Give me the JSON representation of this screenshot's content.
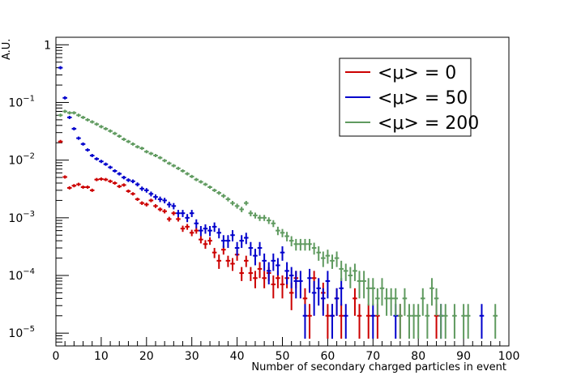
{
  "chart_data": {
    "type": "scatter",
    "xlabel": "Number of secondary charged particles in event",
    "ylabel": "A.U.",
    "xlim": [
      0,
      100
    ],
    "ylim": [
      6e-06,
      1.35
    ],
    "yscale": "log",
    "grid": false,
    "legend_position": "top-right",
    "x_ticks": [
      "0",
      "10",
      "20",
      "30",
      "40",
      "50",
      "60",
      "70",
      "80",
      "90",
      "100"
    ],
    "y_ticks": [
      {
        "value": 1,
        "base": "1",
        "exp": ""
      },
      {
        "value": 0.1,
        "base": "10",
        "exp": "−1"
      },
      {
        "value": 0.01,
        "base": "10",
        "exp": "−2"
      },
      {
        "value": 0.001,
        "base": "10",
        "exp": "−3"
      },
      {
        "value": 0.0001,
        "base": "10",
        "exp": "−4"
      },
      {
        "value": 1e-05,
        "base": "10",
        "exp": "−5"
      }
    ],
    "series": [
      {
        "name": "<μ> = 0",
        "color": "#cc0000",
        "points": [
          [
            1,
            0.021,
            0.0005
          ],
          [
            2,
            0.0051,
            0.00022
          ],
          [
            3,
            0.0033,
            0.00018
          ],
          [
            4,
            0.0036,
            0.00018
          ],
          [
            5,
            0.0038,
            0.00019
          ],
          [
            6,
            0.0034,
            0.00018
          ],
          [
            7,
            0.0034,
            0.00018
          ],
          [
            8,
            0.003,
            0.00017
          ],
          [
            9,
            0.0046,
            0.0002
          ],
          [
            10,
            0.0047,
            0.0002
          ],
          [
            11,
            0.0046,
            0.0002
          ],
          [
            12,
            0.0043,
            0.0002
          ],
          [
            13,
            0.004,
            0.00019
          ],
          [
            14,
            0.0035,
            0.00018
          ],
          [
            15,
            0.0037,
            0.00018
          ],
          [
            16,
            0.0029,
            0.00016
          ],
          [
            17,
            0.0026,
            0.00015
          ],
          [
            18,
            0.0021,
            0.00014
          ],
          [
            19,
            0.0018,
            0.00013
          ],
          [
            20,
            0.0017,
            0.00013
          ],
          [
            21,
            0.002,
            0.00014
          ],
          [
            22,
            0.0016,
            0.00012
          ],
          [
            23,
            0.0014,
            0.00011
          ],
          [
            24,
            0.0013,
            0.00011
          ],
          [
            25,
            0.00095,
            9e-05
          ],
          [
            26,
            0.0012,
            0.0001
          ],
          [
            27,
            0.00095,
            9e-05
          ],
          [
            28,
            0.00065,
            8e-05
          ],
          [
            29,
            0.0007,
            8e-05
          ],
          [
            30,
            0.00055,
            7e-05
          ],
          [
            31,
            0.0006,
            7e-05
          ],
          [
            32,
            0.00042,
            6e-05
          ],
          [
            33,
            0.00035,
            6e-05
          ],
          [
            34,
            0.0004,
            6e-05
          ],
          [
            35,
            0.00025,
            5e-05
          ],
          [
            36,
            0.00018,
            5e-05
          ],
          [
            37,
            0.00028,
            5e-05
          ],
          [
            38,
            0.00018,
            4e-05
          ],
          [
            39,
            0.00016,
            4e-05
          ],
          [
            40,
            0.00023,
            5e-05
          ],
          [
            41,
            0.00011,
            3e-05
          ],
          [
            42,
            0.00018,
            4e-05
          ],
          [
            43,
            0.00011,
            3e-05
          ],
          [
            44,
            9e-05,
            3e-05
          ],
          [
            45,
            0.00013,
            4e-05
          ],
          [
            46,
            9e-05,
            3e-05
          ],
          [
            47,
            0.00011,
            3e-05
          ],
          [
            48,
            7e-05,
            3e-05
          ],
          [
            49,
            9e-05,
            3e-05
          ],
          [
            50,
            7e-05,
            3e-05
          ],
          [
            51,
            9e-05,
            3e-05
          ],
          [
            52,
            5e-05,
            2.5e-05
          ],
          [
            53,
            9e-05,
            3e-05
          ],
          [
            55,
            4e-05,
            2e-05
          ],
          [
            56,
            2e-05,
            1.2e-05
          ],
          [
            57,
            9e-05,
            3e-05
          ],
          [
            59,
            5e-05,
            2.5e-05
          ],
          [
            60,
            2e-05,
            1.2e-05
          ],
          [
            61,
            2e-05,
            1.2e-05
          ],
          [
            62,
            4e-05,
            2e-05
          ],
          [
            63,
            2e-05,
            1.2e-05
          ],
          [
            66,
            4e-05,
            2e-05
          ],
          [
            67,
            2e-05,
            1.2e-05
          ],
          [
            69,
            2e-05,
            1.2e-05
          ],
          [
            71,
            2e-05,
            1.2e-05
          ],
          [
            76,
            2e-05,
            1.2e-05
          ],
          [
            84,
            2e-05,
            1.2e-05
          ]
        ]
      },
      {
        "name": "<μ> = 50",
        "color": "#0000cc",
        "points": [
          [
            1,
            0.4,
            0.003
          ],
          [
            2,
            0.12,
            0.0017
          ],
          [
            3,
            0.055,
            0.0012
          ],
          [
            4,
            0.035,
            0.0009
          ],
          [
            5,
            0.024,
            0.0008
          ],
          [
            6,
            0.019,
            0.0007
          ],
          [
            7,
            0.015,
            0.0006
          ],
          [
            8,
            0.012,
            0.0005
          ],
          [
            9,
            0.0105,
            0.0005
          ],
          [
            10,
            0.0095,
            0.0005
          ],
          [
            11,
            0.0085,
            0.00045
          ],
          [
            12,
            0.0075,
            0.0004
          ],
          [
            13,
            0.0065,
            0.0004
          ],
          [
            14,
            0.0058,
            0.00038
          ],
          [
            15,
            0.005,
            0.00035
          ],
          [
            16,
            0.0045,
            0.00033
          ],
          [
            17,
            0.0043,
            0.00032
          ],
          [
            18,
            0.0038,
            0.0003
          ],
          [
            19,
            0.0032,
            0.00028
          ],
          [
            20,
            0.003,
            0.00027
          ],
          [
            21,
            0.0026,
            0.00025
          ],
          [
            22,
            0.0023,
            0.00024
          ],
          [
            23,
            0.0021,
            0.00023
          ],
          [
            24,
            0.002,
            0.00022
          ],
          [
            25,
            0.0017,
            0.0002
          ],
          [
            26,
            0.0016,
            0.0002
          ],
          [
            27,
            0.0012,
            0.00017
          ],
          [
            28,
            0.0012,
            0.00017
          ],
          [
            29,
            0.001,
            0.00016
          ],
          [
            30,
            0.0012,
            0.00017
          ],
          [
            31,
            0.0008,
            0.00014
          ],
          [
            32,
            0.0006,
            0.00012
          ],
          [
            33,
            0.00065,
            0.00012
          ],
          [
            34,
            0.0006,
            0.00012
          ],
          [
            35,
            0.0007,
            0.00013
          ],
          [
            36,
            0.00055,
            0.00011
          ],
          [
            37,
            0.0004,
            0.0001
          ],
          [
            38,
            0.0004,
            0.0001
          ],
          [
            39,
            0.0005,
            0.00011
          ],
          [
            40,
            0.0003,
            8e-05
          ],
          [
            41,
            0.0004,
            0.0001
          ],
          [
            42,
            0.00045,
            0.0001
          ],
          [
            43,
            0.0003,
            8e-05
          ],
          [
            44,
            0.00022,
            7e-05
          ],
          [
            45,
            0.0003,
            8e-05
          ],
          [
            46,
            0.00018,
            6e-05
          ],
          [
            47,
            0.00012,
            5e-05
          ],
          [
            48,
            0.00018,
            6e-05
          ],
          [
            49,
            0.00015,
            5e-05
          ],
          [
            50,
            0.00025,
            7e-05
          ],
          [
            51,
            0.00012,
            5e-05
          ],
          [
            52,
            0.0001,
            4e-05
          ],
          [
            53,
            8e-05,
            4e-05
          ],
          [
            54,
            8e-05,
            4e-05
          ],
          [
            55,
            2e-05,
            1.2e-05
          ],
          [
            56,
            9e-05,
            4e-05
          ],
          [
            57,
            5e-05,
            3e-05
          ],
          [
            58,
            6e-05,
            3e-05
          ],
          [
            59,
            4e-05,
            2e-05
          ],
          [
            60,
            8e-05,
            4e-05
          ],
          [
            61,
            2e-05,
            1.2e-05
          ],
          [
            62,
            4e-05,
            2e-05
          ],
          [
            63,
            6e-05,
            3e-05
          ],
          [
            64,
            2e-05,
            1.2e-05
          ],
          [
            70,
            2e-05,
            1.2e-05
          ],
          [
            75,
            2e-05,
            1.2e-05
          ],
          [
            85,
            2e-05,
            1.2e-05
          ],
          [
            94,
            2e-05,
            1.2e-05
          ]
        ]
      },
      {
        "name": "<μ> = 200",
        "color": "#5f9a5f",
        "points": [
          [
            1,
            0.06,
            0.0008
          ],
          [
            2,
            0.07,
            0.0009
          ],
          [
            3,
            0.066,
            0.0008
          ],
          [
            4,
            0.066,
            0.0008
          ],
          [
            5,
            0.06,
            0.0008
          ],
          [
            6,
            0.055,
            0.0008
          ],
          [
            7,
            0.05,
            0.0007
          ],
          [
            8,
            0.046,
            0.0007
          ],
          [
            9,
            0.042,
            0.0007
          ],
          [
            10,
            0.038,
            0.0006
          ],
          [
            11,
            0.035,
            0.0006
          ],
          [
            12,
            0.032,
            0.0006
          ],
          [
            13,
            0.029,
            0.0005
          ],
          [
            14,
            0.026,
            0.0005
          ],
          [
            15,
            0.023,
            0.0005
          ],
          [
            16,
            0.021,
            0.0005
          ],
          [
            17,
            0.019,
            0.0004
          ],
          [
            18,
            0.017,
            0.0004
          ],
          [
            19,
            0.016,
            0.0004
          ],
          [
            20,
            0.014,
            0.0004
          ],
          [
            21,
            0.013,
            0.0004
          ],
          [
            22,
            0.012,
            0.0004
          ],
          [
            23,
            0.011,
            0.0003
          ],
          [
            24,
            0.0098,
            0.0003
          ],
          [
            25,
            0.0088,
            0.0003
          ],
          [
            26,
            0.008,
            0.0003
          ],
          [
            27,
            0.0072,
            0.0003
          ],
          [
            28,
            0.0065,
            0.0003
          ],
          [
            29,
            0.0058,
            0.0003
          ],
          [
            30,
            0.0052,
            0.00025
          ],
          [
            31,
            0.0046,
            0.00025
          ],
          [
            32,
            0.0042,
            0.00024
          ],
          [
            33,
            0.0038,
            0.00023
          ],
          [
            34,
            0.0034,
            0.00022
          ],
          [
            35,
            0.003,
            0.0002
          ],
          [
            36,
            0.0027,
            0.0002
          ],
          [
            37,
            0.0024,
            0.00019
          ],
          [
            38,
            0.0021,
            0.00018
          ],
          [
            39,
            0.0018,
            0.00016
          ],
          [
            40,
            0.0016,
            0.00016
          ],
          [
            41,
            0.0014,
            0.00015
          ],
          [
            42,
            0.0018,
            0.00016
          ],
          [
            43,
            0.0012,
            0.00014
          ],
          [
            44,
            0.0011,
            0.00013
          ],
          [
            45,
            0.001,
            0.00012
          ],
          [
            46,
            0.001,
            0.00012
          ],
          [
            47,
            0.0009,
            0.00012
          ],
          [
            48,
            0.0008,
            0.00011
          ],
          [
            49,
            0.0006,
            0.0001
          ],
          [
            50,
            0.00055,
            9e-05
          ],
          [
            51,
            0.00048,
            9e-05
          ],
          [
            52,
            0.0004,
            8e-05
          ],
          [
            53,
            0.00035,
            8e-05
          ],
          [
            54,
            0.00035,
            8e-05
          ],
          [
            55,
            0.00035,
            8e-05
          ],
          [
            56,
            0.00035,
            8e-05
          ],
          [
            57,
            0.0003,
            7e-05
          ],
          [
            58,
            0.00025,
            7e-05
          ],
          [
            59,
            0.0002,
            6e-05
          ],
          [
            60,
            0.00022,
            6e-05
          ],
          [
            61,
            0.00018,
            5e-05
          ],
          [
            62,
            0.0002,
            6e-05
          ],
          [
            63,
            0.00013,
            5e-05
          ],
          [
            64,
            0.00012,
            4e-05
          ],
          [
            65,
            0.0001,
            4e-05
          ],
          [
            66,
            0.00012,
            4e-05
          ],
          [
            67,
            8e-05,
            4e-05
          ],
          [
            68,
            8e-05,
            4e-05
          ],
          [
            69,
            6e-05,
            3e-05
          ],
          [
            70,
            6e-05,
            3e-05
          ],
          [
            71,
            4e-05,
            2e-05
          ],
          [
            72,
            6e-05,
            3e-05
          ],
          [
            73,
            4e-05,
            2e-05
          ],
          [
            74,
            4e-05,
            2e-05
          ],
          [
            75,
            4e-05,
            2e-05
          ],
          [
            76,
            2e-05,
            1.2e-05
          ],
          [
            77,
            4e-05,
            2e-05
          ],
          [
            78,
            2e-05,
            1.2e-05
          ],
          [
            79,
            2e-05,
            1.2e-05
          ],
          [
            80,
            2e-05,
            1.2e-05
          ],
          [
            81,
            4e-05,
            2e-05
          ],
          [
            82,
            2e-05,
            1.2e-05
          ],
          [
            83,
            6e-05,
            3e-05
          ],
          [
            84,
            4e-05,
            2e-05
          ],
          [
            85,
            2e-05,
            1.2e-05
          ],
          [
            86,
            2e-05,
            1.2e-05
          ],
          [
            88,
            2e-05,
            1.2e-05
          ],
          [
            90,
            2e-05,
            1.2e-05
          ],
          [
            91,
            2e-05,
            1.2e-05
          ],
          [
            97,
            2e-05,
            1.2e-05
          ]
        ]
      }
    ]
  }
}
